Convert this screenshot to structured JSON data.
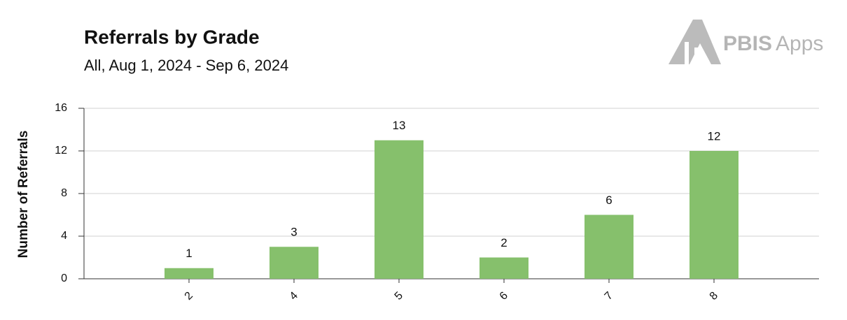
{
  "logo": {
    "bold": "PBIS",
    "light": "Apps"
  },
  "chart_data": {
    "type": "bar",
    "title": "Referrals by Grade",
    "subtitle": "All, Aug 1, 2024 - Sep 6, 2024",
    "y_label": "Number of Referrals",
    "categories": [
      "2",
      "4",
      "5",
      "6",
      "7",
      "8"
    ],
    "values": [
      1,
      3,
      13,
      2,
      6,
      12
    ],
    "color": "#86c06c",
    "ylim": [
      0,
      16
    ],
    "yticks": [
      0,
      4,
      8,
      12,
      16
    ],
    "grid": true
  }
}
